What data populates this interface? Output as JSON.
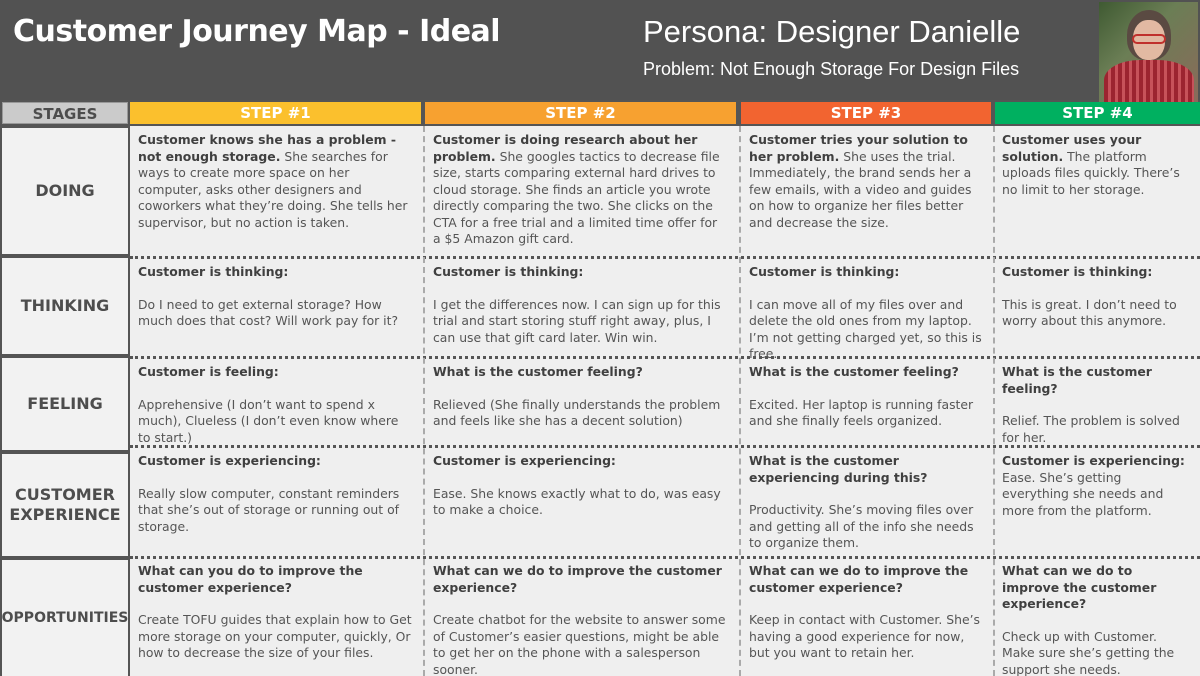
{
  "header": {
    "title": "Customer Journey Map - Ideal",
    "persona": "Persona: Designer Danielle",
    "problem": "Problem: Not Enough Storage For Design Files"
  },
  "colors": {
    "step1": "#fbc02d",
    "step2": "#f7a130",
    "step3": "#f26430",
    "step4": "#00b060",
    "header_bg": "#525252"
  },
  "stages_label": "STAGES",
  "steps": [
    "STEP #1",
    "STEP #2",
    "STEP #3",
    "STEP #4"
  ],
  "stages": [
    "DOING",
    "THINKING",
    "FEELING",
    "CUSTOMER EXPERIENCE",
    "OPPORTUNITIES"
  ],
  "doing": [
    {
      "bold": "Customer knows she has a problem - not enough storage.",
      "text": " She searches for ways to create more space on her computer, asks other designers and coworkers what they’re doing. She tells her supervisor, but no action is taken."
    },
    {
      "bold": "Customer is doing research about her problem.",
      "text": " She googles tactics to decrease file size, starts comparing external hard drives to cloud storage. She finds an article you wrote directly comparing the two. She clicks on the CTA for a free trial and a limited time offer for a $5 Amazon gift card."
    },
    {
      "bold": "Customer tries your solution to her problem.",
      "text": " She uses the trial. Immediately, the brand sends her a few emails, with a video and guides on how to organize her files better and decrease the size."
    },
    {
      "bold": "Customer uses your solution.",
      "text": " The platform uploads files quickly. There’s no limit to her storage."
    }
  ],
  "thinking": [
    {
      "q": "Customer is thinking:",
      "a": "Do I need to get external storage? How much does that cost? Will work pay for it?"
    },
    {
      "q": "Customer is thinking:",
      "a": "I get the differences now. I can sign up for this trial and start storing stuff right away, plus, I can use that gift card later. Win win."
    },
    {
      "q": "Customer is thinking:",
      "a": "I can move all of my files over and delete the old ones from my laptop. I’m not getting charged yet, so this is free."
    },
    {
      "q": "Customer is thinking:",
      "a": "This is great. I don’t need to worry about this anymore."
    }
  ],
  "feeling": [
    {
      "q": "Customer is feeling:",
      "a": "Apprehensive (I don’t want to spend x much), Clueless (I don’t even know where to start.)"
    },
    {
      "q": "What is the customer feeling?",
      "a": "Relieved (She finally understands the problem and feels like she has a decent solution)"
    },
    {
      "q": "What is the customer feeling?",
      "a": "Excited. Her laptop is running faster and she finally feels organized."
    },
    {
      "q": "What is the customer feeling?",
      "a": "Relief. The problem is solved for her."
    }
  ],
  "experience": [
    {
      "q": "Customer is experiencing:",
      "a": "Really slow computer, constant reminders that she’s out of storage or running out of storage."
    },
    {
      "q": "Customer is experiencing:",
      "a": "Ease. She knows exactly what to do, was easy to make a choice."
    },
    {
      "q": "What is the customer experiencing during this?",
      "a": "Productivity. She’s moving files over and getting all of the info she needs to organize them."
    },
    {
      "q": "Customer is experiencing:",
      "a": "Ease. She’s getting everything she needs and more from the platform."
    }
  ],
  "opportunities": [
    {
      "q": "What can you do to improve the customer experience?",
      "a": "Create TOFU guides that explain how to Get more storage on your computer, quickly, Or how to decrease the size of your files."
    },
    {
      "q": "What can we do to improve the customer experience?",
      "a": "Create chatbot for the website to answer some of Customer’s easier questions, might be able to get her on the phone with a salesperson sooner."
    },
    {
      "q": "What can we do to improve the customer experience?",
      "a": "Keep in contact with Customer. She’s having a good experience for now, but you want to retain her."
    },
    {
      "q": "What can we do to improve the customer experience?",
      "a": "Check up with Customer. Make sure she’s getting the support she needs."
    }
  ]
}
